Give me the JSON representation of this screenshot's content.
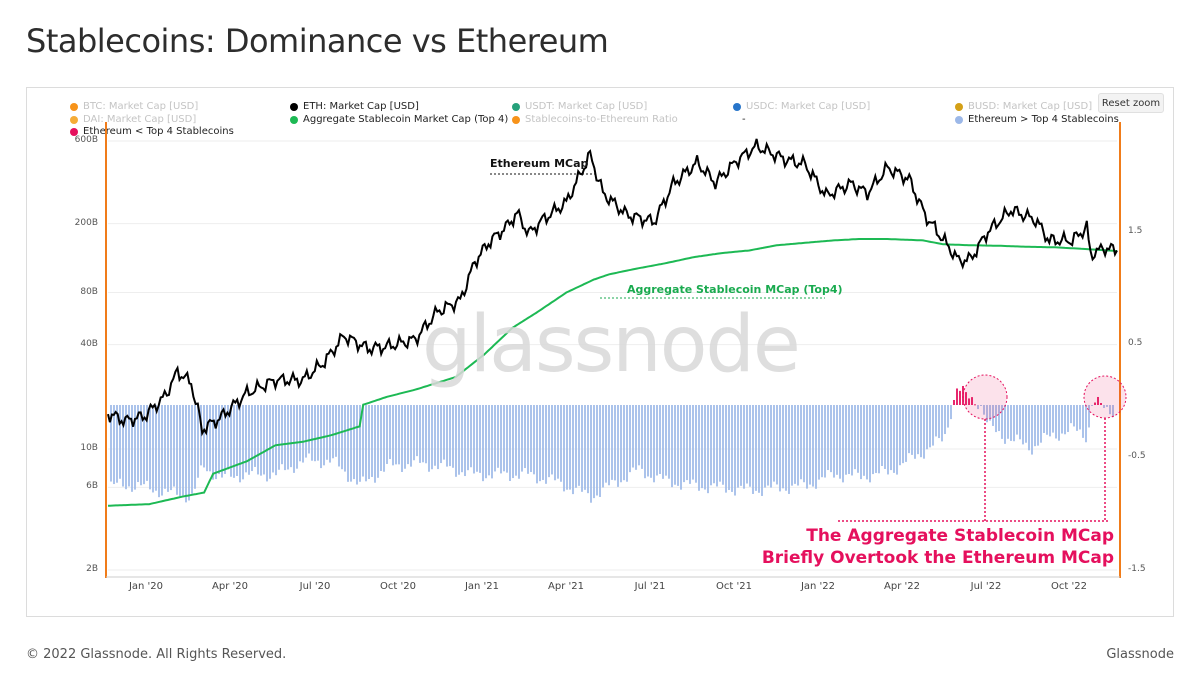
{
  "title": "Stablecoins: Dominance vs Ethereum",
  "footer": {
    "copyright": "© 2022 Glassnode. All Rights Reserved.",
    "brand": "Glassnode"
  },
  "watermark": "glassnode",
  "reset_zoom_label": "Reset zoom",
  "legend": [
    {
      "label": "BTC: Market Cap [USD]",
      "color": "#f7931a",
      "active": false
    },
    {
      "label": "ETH: Market Cap [USD]",
      "color": "#000000",
      "active": true
    },
    {
      "label": "USDT: Market Cap [USD]",
      "color": "#26a17b",
      "active": false
    },
    {
      "label": "USDC: Market Cap [USD]",
      "color": "#2775ca",
      "active": false
    },
    {
      "label": "BUSD: Market Cap [USD]",
      "color": "#d4a017",
      "active": false
    },
    {
      "label": "DAI: Market Cap [USD]",
      "color": "#f5ac37",
      "active": false
    },
    {
      "label": "Aggregate Stablecoin Market Cap (Top 4)",
      "color": "#1db954",
      "active": true
    },
    {
      "label": "Stablecoins-to-Ethereum Ratio",
      "color": "#f7931a",
      "active": false
    },
    {
      "label": "-",
      "color": "",
      "active": true
    },
    {
      "label": "Ethereum > Top 4 Stablecoins",
      "color": "#9cb8e8",
      "active": true
    },
    {
      "label": "Ethereum < Top 4 Stablecoins",
      "color": "#e5105d",
      "active": true
    }
  ],
  "annotations": {
    "eth": "Ethereum MCap",
    "stable": "Aggregate Stablecoin MCap (Top4)",
    "callout_line1": "The Aggregate Stablecoin MCap",
    "callout_line2": "Briefly Overtook the Ethereum MCap"
  },
  "colors": {
    "eth": "#000000",
    "stable": "#1db954",
    "ratio_pos": "#9cb8e8",
    "ratio_neg": "#e5105d",
    "axis": "#f07c1a"
  },
  "chart_data": {
    "type": "line",
    "title": "Stablecoins: Dominance vs Ethereum",
    "x_axis": {
      "type": "date",
      "ticks": [
        "Jan '20",
        "Apr '20",
        "Jul '20",
        "Oct '20",
        "Jan '21",
        "Apr '21",
        "Jul '21",
        "Oct '21",
        "Jan '22",
        "Apr '22",
        "Jul '22",
        "Oct '22"
      ],
      "range": [
        "2019-12-01",
        "2022-12-08"
      ]
    },
    "y_left": {
      "scale": "log",
      "unit": "USD",
      "ticks": [
        "2B",
        "6B",
        "10B",
        "40B",
        "80B",
        "200B",
        "600B"
      ]
    },
    "y_right": {
      "scale": "linear",
      "ticks": [
        "-1.5",
        "-0.5",
        "0.5",
        "1.5"
      ],
      "range": [
        -1.5,
        1.7
      ]
    },
    "grid": true,
    "legend_position": "top",
    "series": [
      {
        "name": "ETH: Market Cap [USD]",
        "axis": "left",
        "points": [
          [
            "2019-12-01",
            16
          ],
          [
            "2019-12-20",
            14.5
          ],
          [
            "2020-01-10",
            15.5
          ],
          [
            "2020-02-01",
            20
          ],
          [
            "2020-02-15",
            28
          ],
          [
            "2020-03-01",
            24
          ],
          [
            "2020-03-13",
            13
          ],
          [
            "2020-04-01",
            15
          ],
          [
            "2020-05-01",
            21
          ],
          [
            "2020-06-01",
            25
          ],
          [
            "2020-07-01",
            25
          ],
          [
            "2020-07-25",
            32
          ],
          [
            "2020-08-15",
            45
          ],
          [
            "2020-09-10",
            38
          ],
          [
            "2020-10-01",
            39
          ],
          [
            "2020-11-01",
            43
          ],
          [
            "2020-11-25",
            62
          ],
          [
            "2020-12-20",
            72
          ],
          [
            "2021-01-05",
            120
          ],
          [
            "2021-01-20",
            155
          ],
          [
            "2021-02-10",
            195
          ],
          [
            "2021-02-20",
            230
          ],
          [
            "2021-03-05",
            175
          ],
          [
            "2021-03-20",
            210
          ],
          [
            "2021-04-15",
            265
          ],
          [
            "2021-05-11",
            500
          ],
          [
            "2021-05-25",
            300
          ],
          [
            "2021-06-20",
            225
          ],
          [
            "2021-07-20",
            205
          ],
          [
            "2021-08-10",
            340
          ],
          [
            "2021-09-05",
            450
          ],
          [
            "2021-09-25",
            345
          ],
          [
            "2021-10-20",
            470
          ],
          [
            "2021-11-09",
            560
          ],
          [
            "2021-12-10",
            470
          ],
          [
            "2022-01-01",
            440
          ],
          [
            "2022-01-24",
            290
          ],
          [
            "2022-02-20",
            340
          ],
          [
            "2022-03-10",
            300
          ],
          [
            "2022-04-01",
            420
          ],
          [
            "2022-04-25",
            360
          ],
          [
            "2022-05-12",
            225
          ],
          [
            "2022-06-18",
            122
          ],
          [
            "2022-07-01",
            125
          ],
          [
            "2022-07-20",
            180
          ],
          [
            "2022-08-14",
            240
          ],
          [
            "2022-09-10",
            210
          ],
          [
            "2022-09-25",
            160
          ],
          [
            "2022-10-20",
            160
          ],
          [
            "2022-11-05",
            190
          ],
          [
            "2022-11-09",
            133
          ],
          [
            "2022-11-25",
            145
          ],
          [
            "2022-12-08",
            140
          ]
        ]
      },
      {
        "name": "Aggregate Stablecoin Market Cap (Top 4)",
        "axis": "left",
        "points": [
          [
            "2019-12-01",
            4.7
          ],
          [
            "2020-01-15",
            4.8
          ],
          [
            "2020-02-20",
            5.3
          ],
          [
            "2020-03-15",
            5.6
          ],
          [
            "2020-03-25",
            7.2
          ],
          [
            "2020-05-01",
            8.5
          ],
          [
            "2020-06-01",
            10.5
          ],
          [
            "2020-07-01",
            11
          ],
          [
            "2020-08-01",
            12
          ],
          [
            "2020-09-01",
            13.5
          ],
          [
            "2020-09-05",
            18
          ],
          [
            "2020-10-01",
            20
          ],
          [
            "2020-11-01",
            22
          ],
          [
            "2020-12-15",
            26
          ],
          [
            "2021-01-15",
            35
          ],
          [
            "2021-02-15",
            50
          ],
          [
            "2021-03-15",
            62
          ],
          [
            "2021-04-15",
            80
          ],
          [
            "2021-05-15",
            95
          ],
          [
            "2021-06-01",
            102
          ],
          [
            "2021-07-01",
            110
          ],
          [
            "2021-08-01",
            118
          ],
          [
            "2021-09-01",
            128
          ],
          [
            "2021-10-01",
            135
          ],
          [
            "2021-11-01",
            140
          ],
          [
            "2021-12-01",
            150
          ],
          [
            "2022-01-01",
            155
          ],
          [
            "2022-02-01",
            160
          ],
          [
            "2022-03-01",
            163
          ],
          [
            "2022-04-01",
            163
          ],
          [
            "2022-05-10",
            160
          ],
          [
            "2022-06-01",
            152
          ],
          [
            "2022-07-01",
            150
          ],
          [
            "2022-08-01",
            149
          ],
          [
            "2022-09-01",
            147
          ],
          [
            "2022-10-01",
            146
          ],
          [
            "2022-11-01",
            143
          ],
          [
            "2022-12-08",
            139
          ]
        ]
      },
      {
        "name": "Stablecoins-to-Ethereum Ratio (Ethereum > / < Top 4 Stablecoins)",
        "axis": "right",
        "style": "columns",
        "points": [
          [
            "2019-12-01",
            -0.72
          ],
          [
            "2020-01-01",
            -0.72
          ],
          [
            "2020-02-01",
            -0.78
          ],
          [
            "2020-03-01",
            -0.82
          ],
          [
            "2020-03-13",
            -0.55
          ],
          [
            "2020-04-01",
            -0.65
          ],
          [
            "2020-05-01",
            -0.62
          ],
          [
            "2020-06-01",
            -0.62
          ],
          [
            "2020-07-01",
            -0.5
          ],
          [
            "2020-08-01",
            -0.5
          ],
          [
            "2020-09-01",
            -0.72
          ],
          [
            "2020-10-01",
            -0.55
          ],
          [
            "2020-11-01",
            -0.52
          ],
          [
            "2020-12-01",
            -0.55
          ],
          [
            "2021-01-01",
            -0.62
          ],
          [
            "2021-02-01",
            -0.62
          ],
          [
            "2021-03-01",
            -0.62
          ],
          [
            "2021-04-01",
            -0.68
          ],
          [
            "2021-05-11",
            -0.82
          ],
          [
            "2021-06-01",
            -0.72
          ],
          [
            "2021-07-01",
            -0.58
          ],
          [
            "2021-08-01",
            -0.68
          ],
          [
            "2021-09-01",
            -0.72
          ],
          [
            "2021-10-01",
            -0.74
          ],
          [
            "2021-11-01",
            -0.76
          ],
          [
            "2021-12-01",
            -0.74
          ],
          [
            "2022-01-01",
            -0.72
          ],
          [
            "2022-02-01",
            -0.62
          ],
          [
            "2022-03-01",
            -0.64
          ],
          [
            "2022-04-01",
            -0.6
          ],
          [
            "2022-05-01",
            -0.46
          ],
          [
            "2022-06-01",
            -0.3
          ],
          [
            "2022-06-15",
            0.15
          ],
          [
            "2022-06-25",
            0.08
          ],
          [
            "2022-07-10",
            0.02
          ],
          [
            "2022-07-20",
            -0.2
          ],
          [
            "2022-08-10",
            -0.3
          ],
          [
            "2022-09-05",
            -0.38
          ],
          [
            "2022-09-25",
            -0.28
          ],
          [
            "2022-10-20",
            -0.22
          ],
          [
            "2022-11-05",
            -0.28
          ],
          [
            "2022-11-10",
            0.05
          ],
          [
            "2022-11-25",
            -0.05
          ],
          [
            "2022-12-08",
            -0.05
          ]
        ]
      }
    ]
  }
}
